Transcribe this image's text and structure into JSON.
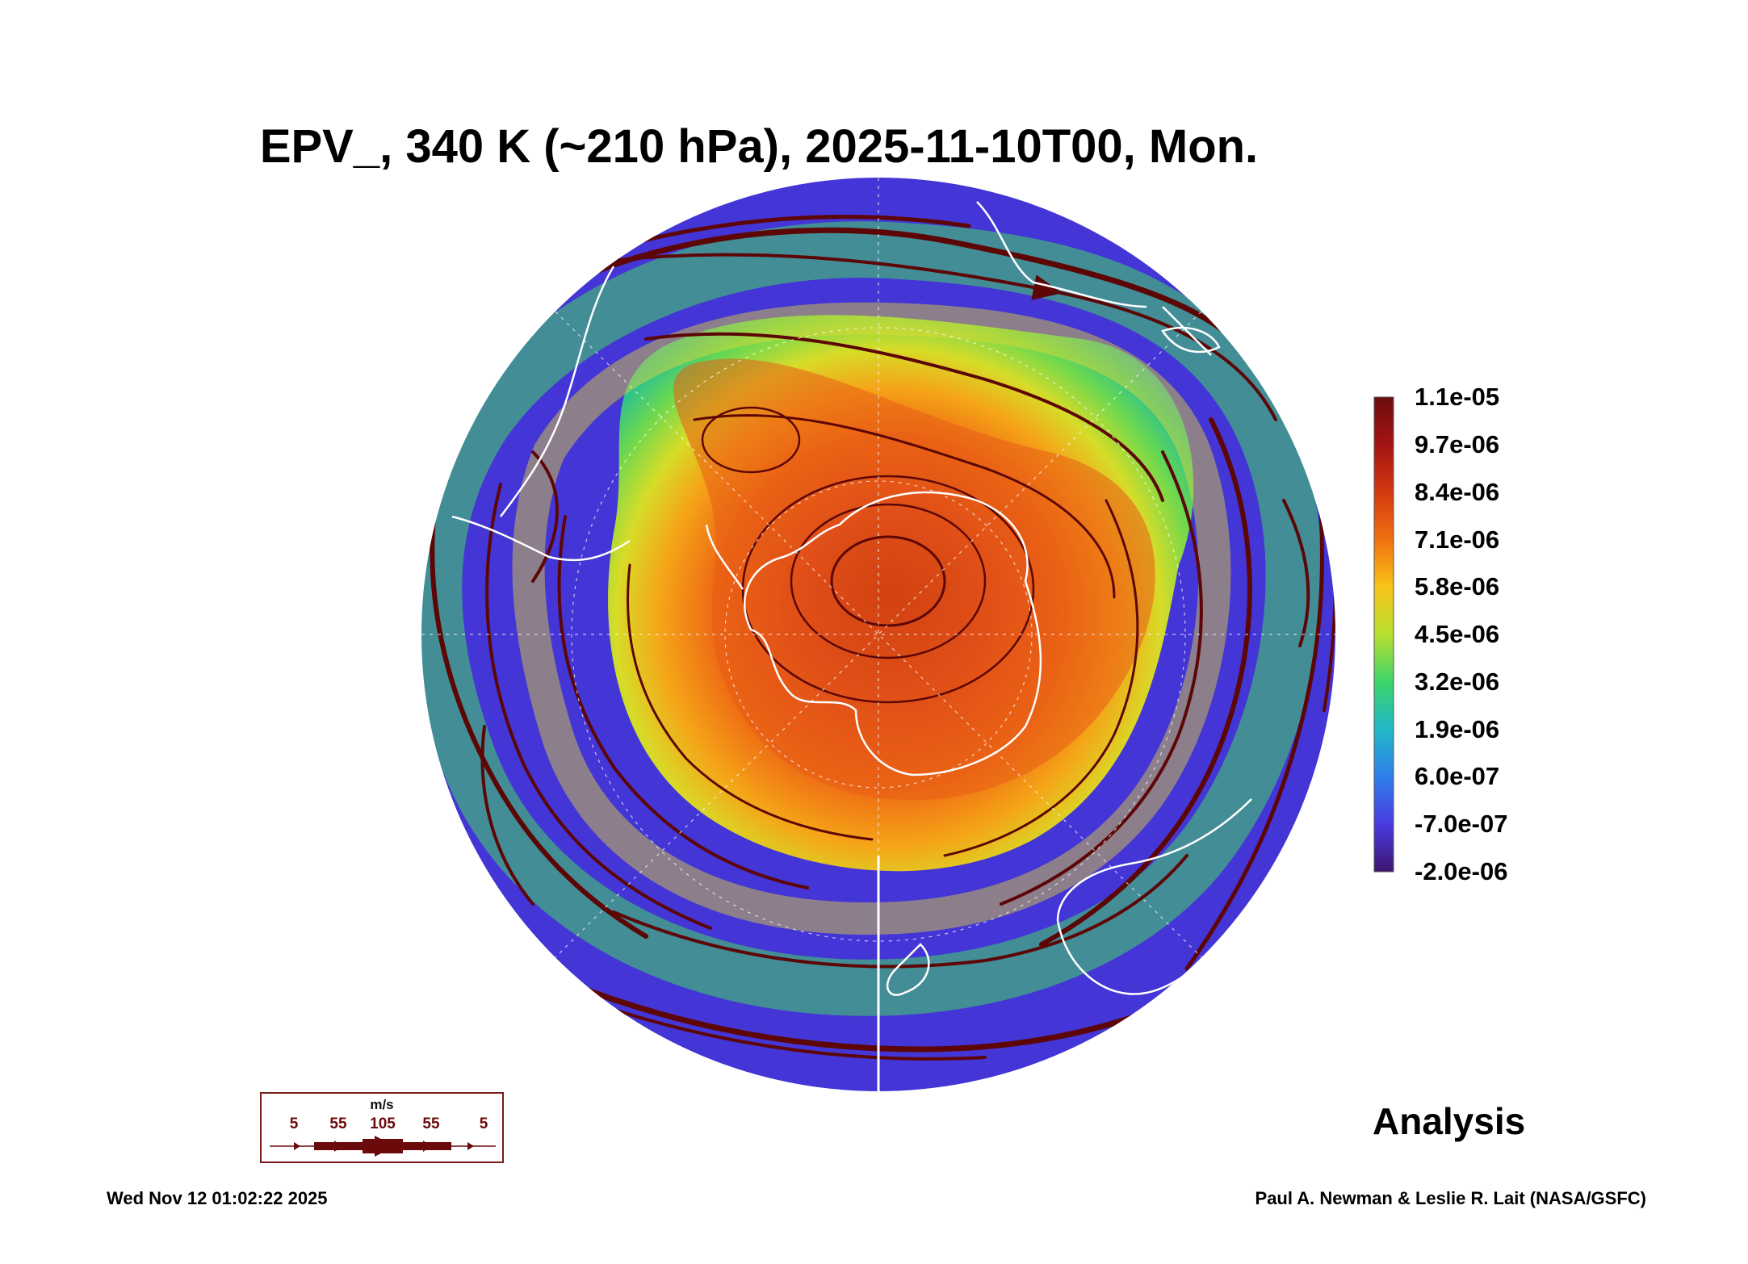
{
  "title": "EPV_, 340 K (~210 hPa), 2025-11-10T00, Mon.",
  "colorbar": {
    "labels": [
      "1.1e-05",
      "9.7e-06",
      "8.4e-06",
      "7.1e-06",
      "5.8e-06",
      "4.5e-06",
      "3.2e-06",
      "1.9e-06",
      "6.0e-07",
      "-7.0e-07",
      "-2.0e-06"
    ],
    "colors_top_to_bottom": [
      "#6e0d0d",
      "#a31414",
      "#d23a10",
      "#f07010",
      "#f8c418",
      "#b8e030",
      "#3cd46a",
      "#22b8c8",
      "#2e7fe8",
      "#4a3be0",
      "#3c1470"
    ]
  },
  "legend": {
    "unit": "m/s",
    "speeds": [
      "5",
      "55",
      "105",
      "55",
      "5"
    ]
  },
  "analysis_label": "Analysis",
  "timestamp": "Wed Nov 12 01:02:22 2025",
  "credit": "Paul A. Newman & Leslie R. Lait (NASA/GSFC)",
  "colors": {
    "streamline": "#5c0606",
    "coastline": "#ffffff"
  }
}
